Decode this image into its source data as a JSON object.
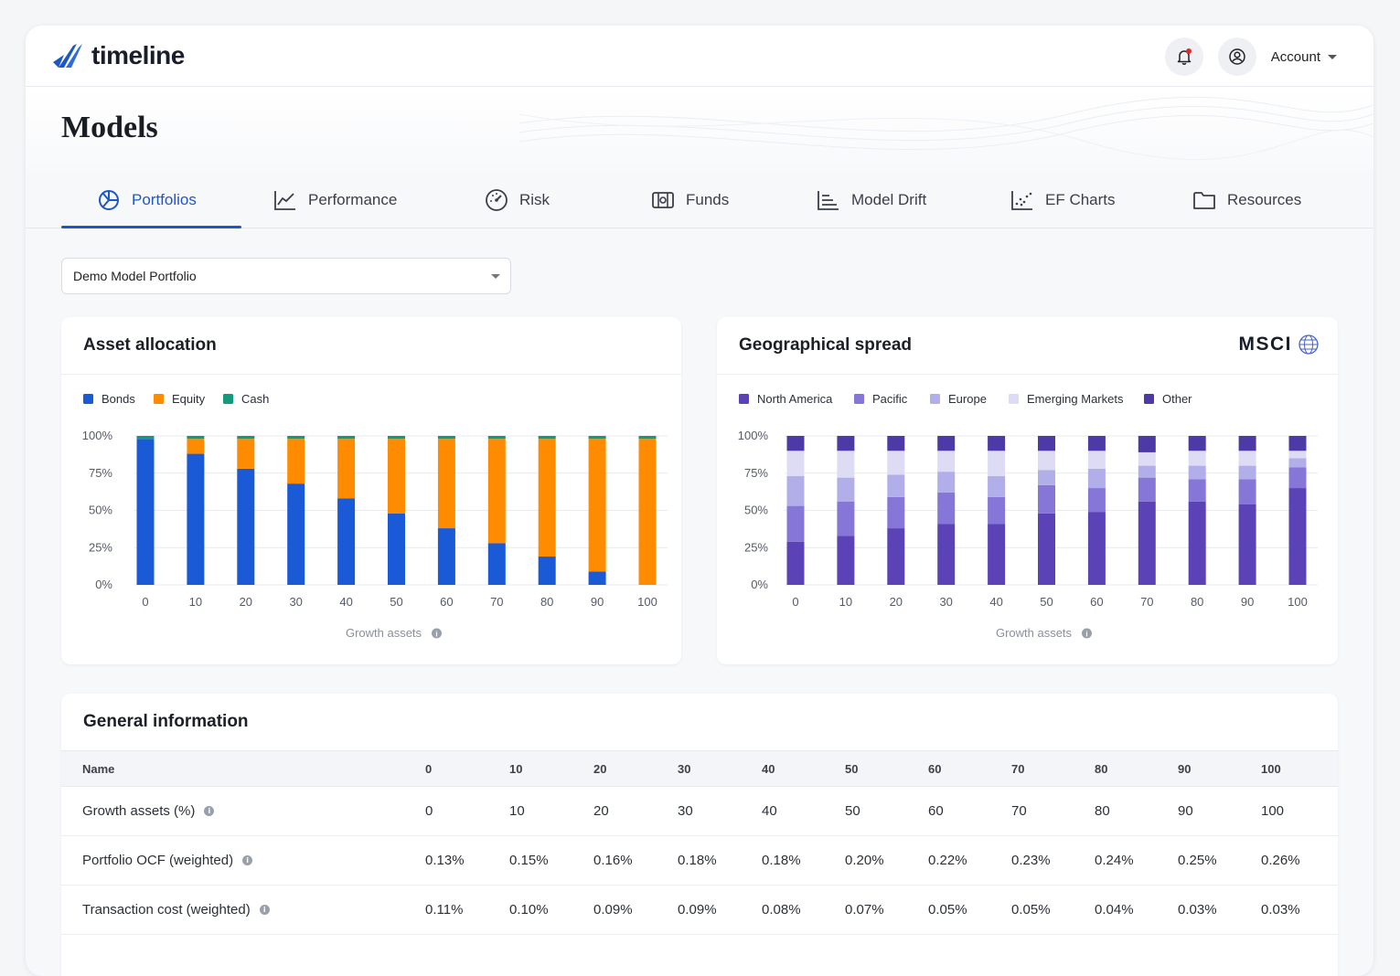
{
  "app": {
    "logo_text": "timeline",
    "account_label": "Account"
  },
  "page": {
    "title": "Models"
  },
  "tabs": [
    {
      "label": "Portfolios",
      "icon": "pie-chart-icon",
      "active": true
    },
    {
      "label": "Performance",
      "icon": "line-chart-icon",
      "active": false
    },
    {
      "label": "Risk",
      "icon": "gauge-icon",
      "active": false
    },
    {
      "label": "Funds",
      "icon": "fund-icon",
      "active": false
    },
    {
      "label": "Model Drift",
      "icon": "bar-list-icon",
      "active": false
    },
    {
      "label": "EF Charts",
      "icon": "scatter-icon",
      "active": false
    },
    {
      "label": "Resources",
      "icon": "folder-icon",
      "active": false
    }
  ],
  "portfolio_select": {
    "value": "Demo Model Portfolio"
  },
  "colors": {
    "accent": "#1e56c8",
    "bonds": "#1a5ad6",
    "equity": "#ff8c00",
    "cash": "#129a7a",
    "north_america": "#5b43b7",
    "pacific": "#8676d8",
    "europe": "#b2aee9",
    "emerging_markets": "#dedcf5",
    "other": "#4d3aa6"
  },
  "asset_allocation": {
    "title": "Asset allocation",
    "info_icon": "info-icon",
    "chart_data": {
      "type": "bar",
      "stacked": true,
      "categories": [
        "0",
        "10",
        "20",
        "30",
        "40",
        "50",
        "60",
        "70",
        "80",
        "90",
        "100"
      ],
      "series": [
        {
          "name": "Bonds",
          "values": [
            98,
            88,
            78,
            68,
            58,
            48,
            38,
            28,
            19,
            9,
            0
          ]
        },
        {
          "name": "Equity",
          "values": [
            0,
            10,
            20,
            30,
            40,
            50,
            60,
            70,
            79,
            89,
            98
          ]
        },
        {
          "name": "Cash",
          "values": [
            2,
            2,
            2,
            2,
            2,
            2,
            2,
            2,
            2,
            2,
            2
          ]
        }
      ],
      "yticks": [
        "0%",
        "25%",
        "50%",
        "75%",
        "100%"
      ],
      "ylim": [
        0,
        100
      ],
      "xlabel": "Growth assets",
      "legend": "top-left"
    }
  },
  "geo_spread": {
    "title": "Geographical spread",
    "brand": "MSCI",
    "chart_data": {
      "type": "bar",
      "stacked": true,
      "categories": [
        "0",
        "10",
        "20",
        "30",
        "40",
        "50",
        "60",
        "70",
        "80",
        "90",
        "100"
      ],
      "series": [
        {
          "name": "North America",
          "values": [
            29,
            33,
            38,
            41,
            41,
            48,
            49,
            56,
            56,
            54,
            65
          ]
        },
        {
          "name": "Pacific",
          "values": [
            24,
            23,
            21,
            21,
            18,
            19,
            16,
            16,
            15,
            17,
            14
          ]
        },
        {
          "name": "Europe",
          "values": [
            20,
            16,
            15,
            14,
            14,
            10,
            13,
            8,
            9,
            9,
            6
          ]
        },
        {
          "name": "Emerging Markets",
          "values": [
            17,
            18,
            16,
            14,
            17,
            13,
            12,
            9,
            10,
            10,
            5
          ]
        },
        {
          "name": "Other",
          "values": [
            10,
            10,
            10,
            10,
            10,
            10,
            10,
            11,
            10,
            10,
            10
          ]
        }
      ],
      "yticks": [
        "0%",
        "25%",
        "50%",
        "75%",
        "100%"
      ],
      "ylim": [
        0,
        100
      ],
      "xlabel": "Growth assets",
      "legend": "top-left"
    }
  },
  "general_info": {
    "title": "General information",
    "headers": [
      "Name",
      "0",
      "10",
      "20",
      "30",
      "40",
      "50",
      "60",
      "70",
      "80",
      "90",
      "100"
    ],
    "rows": [
      {
        "name": "Growth assets (%)",
        "values": [
          "0",
          "10",
          "20",
          "30",
          "40",
          "50",
          "60",
          "70",
          "80",
          "90",
          "100"
        ]
      },
      {
        "name": "Portfolio OCF (weighted)",
        "values": [
          "0.13%",
          "0.15%",
          "0.16%",
          "0.18%",
          "0.18%",
          "0.20%",
          "0.22%",
          "0.23%",
          "0.24%",
          "0.25%",
          "0.26%"
        ]
      },
      {
        "name": "Transaction cost (weighted)",
        "values": [
          "0.11%",
          "0.10%",
          "0.09%",
          "0.09%",
          "0.08%",
          "0.07%",
          "0.05%",
          "0.05%",
          "0.04%",
          "0.03%",
          "0.03%"
        ]
      }
    ]
  }
}
